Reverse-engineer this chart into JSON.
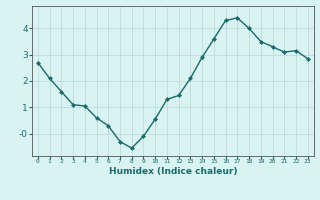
{
  "x": [
    0,
    1,
    2,
    3,
    4,
    5,
    6,
    7,
    8,
    9,
    10,
    11,
    12,
    13,
    14,
    15,
    16,
    17,
    18,
    19,
    20,
    21,
    22,
    23
  ],
  "y": [
    2.7,
    2.1,
    1.6,
    1.1,
    1.05,
    0.6,
    0.3,
    -0.3,
    -0.55,
    -0.1,
    0.55,
    1.3,
    1.45,
    2.1,
    2.9,
    3.6,
    4.3,
    4.4,
    4.0,
    3.5,
    3.3,
    3.1,
    3.15,
    2.85
  ],
  "line_color": "#1a6b6b",
  "marker": "D",
  "marker_size": 2.0,
  "linewidth": 1.0,
  "xlabel": "Humidex (Indice chaleur)",
  "bg_color": "#d9f2f2",
  "grid_color": "#b8d8d8",
  "axis_color": "#555555",
  "tick_color": "#1a6b6b",
  "xlabel_color": "#1a6b6b",
  "ytick_labels": [
    "-0",
    "1",
    "2",
    "3",
    "4"
  ],
  "ytick_vals": [
    0,
    1,
    2,
    3,
    4
  ],
  "xlim": [
    -0.5,
    23.5
  ],
  "ylim": [
    -0.85,
    4.85
  ]
}
